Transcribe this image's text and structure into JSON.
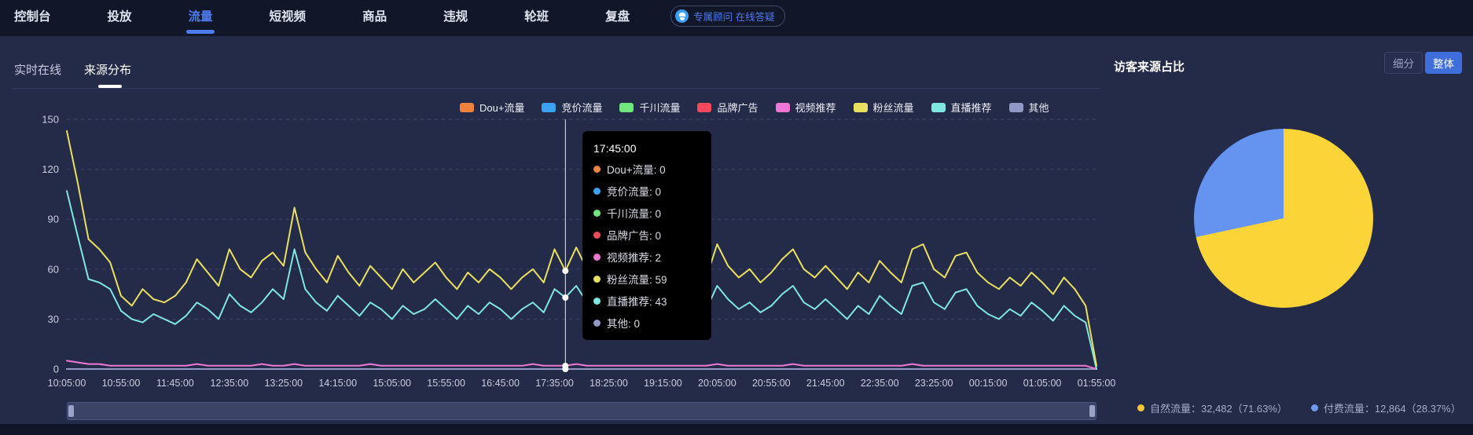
{
  "nav": {
    "items": [
      {
        "label": "控制台",
        "active": false
      },
      {
        "label": "投放",
        "active": false
      },
      {
        "label": "流量",
        "active": true
      },
      {
        "label": "短视频",
        "active": false
      },
      {
        "label": "商品",
        "active": false
      },
      {
        "label": "违规",
        "active": false
      },
      {
        "label": "轮班",
        "active": false
      },
      {
        "label": "复盘",
        "active": false
      }
    ],
    "badge": {
      "icon": "advisor-icon",
      "text": "专属顾问 在线答疑"
    }
  },
  "tabs": [
    {
      "label": "实时在线",
      "active": false
    },
    {
      "label": "来源分布",
      "active": true
    }
  ],
  "right_panel": {
    "title": "访客来源占比",
    "toggle": [
      {
        "label": "细分",
        "active": false
      },
      {
        "label": "整体",
        "active": true
      }
    ],
    "legend": [
      {
        "label": "自然流量",
        "value": "32,482",
        "pct": "71.63%",
        "color": "#F6C838"
      },
      {
        "label": "付费流量",
        "value": "12,864",
        "pct": "28.37%",
        "color": "#6E9BF2"
      }
    ]
  },
  "chart_data": [
    {
      "type": "line",
      "title": "来源分布",
      "xlabel": "",
      "ylabel": "",
      "ylim": [
        0,
        150
      ],
      "y_ticks": [
        0,
        30,
        60,
        90,
        120,
        150
      ],
      "grid": "dashed-horizontal",
      "legend_position": "top",
      "x_interval_minutes": 10,
      "x_ticks": [
        "10:05:00",
        "10:55:00",
        "11:45:00",
        "12:35:00",
        "13:25:00",
        "14:15:00",
        "15:05:00",
        "15:55:00",
        "16:45:00",
        "17:35:00",
        "18:25:00",
        "19:15:00",
        "20:05:00",
        "20:55:00",
        "21:45:00",
        "22:35:00",
        "23:25:00",
        "00:15:00",
        "01:05:00",
        "01:55:00"
      ],
      "series": [
        {
          "name": "Dou+流量",
          "color": "#F0823F",
          "values": [
            0,
            0
          ]
        },
        {
          "name": "竞价流量",
          "color": "#3BA2F2",
          "values": [
            0,
            0
          ]
        },
        {
          "name": "千川流量",
          "color": "#71E57E",
          "values": [
            0,
            0
          ]
        },
        {
          "name": "品牌广告",
          "color": "#F2495A",
          "values": [
            0,
            0
          ]
        },
        {
          "name": "视频推荐",
          "color": "#EE77D4",
          "values": [
            5,
            4,
            3,
            3,
            2,
            2,
            2,
            2,
            2,
            2,
            2,
            2,
            3,
            2,
            2,
            2,
            2,
            2,
            3,
            2,
            2,
            3,
            2,
            2,
            2,
            2,
            2,
            2,
            3,
            2,
            2,
            2,
            2,
            2,
            2,
            2,
            2,
            2,
            2,
            2,
            2,
            2,
            2,
            3,
            2,
            2,
            2,
            3,
            2,
            2,
            2,
            2,
            2,
            2,
            2,
            2,
            2,
            2,
            2,
            2,
            3,
            2,
            2,
            2,
            2,
            2,
            2,
            3,
            2,
            2,
            2,
            2,
            2,
            2,
            2,
            2,
            2,
            2,
            3,
            2,
            2,
            2,
            2,
            2,
            2,
            2,
            2,
            2,
            2,
            2,
            2,
            2,
            2,
            2,
            2,
            0
          ]
        },
        {
          "name": "粉丝流量",
          "color": "#E9E060",
          "values": [
            143,
            112,
            78,
            72,
            64,
            44,
            38,
            48,
            42,
            40,
            44,
            52,
            66,
            58,
            50,
            72,
            60,
            55,
            65,
            70,
            62,
            97,
            70,
            60,
            52,
            68,
            58,
            50,
            62,
            55,
            48,
            60,
            52,
            58,
            64,
            55,
            48,
            58,
            52,
            60,
            55,
            48,
            55,
            60,
            52,
            72,
            59,
            73,
            60,
            55,
            65,
            58,
            52,
            60,
            55,
            48,
            58,
            52,
            62,
            55,
            75,
            62,
            55,
            60,
            52,
            58,
            66,
            72,
            60,
            55,
            62,
            55,
            48,
            58,
            52,
            65,
            58,
            52,
            72,
            75,
            60,
            55,
            68,
            70,
            58,
            52,
            48,
            55,
            50,
            58,
            52,
            45,
            55,
            48,
            38,
            2
          ]
        },
        {
          "name": "直播推荐",
          "color": "#7FE7E0",
          "values": [
            107,
            80,
            54,
            52,
            48,
            35,
            30,
            28,
            33,
            30,
            27,
            32,
            40,
            36,
            30,
            45,
            38,
            34,
            40,
            48,
            42,
            72,
            48,
            40,
            35,
            44,
            38,
            32,
            40,
            36,
            30,
            38,
            33,
            36,
            42,
            36,
            30,
            38,
            33,
            40,
            36,
            30,
            36,
            40,
            34,
            48,
            43,
            50,
            40,
            36,
            44,
            38,
            33,
            40,
            36,
            30,
            38,
            33,
            42,
            36,
            50,
            42,
            36,
            40,
            34,
            38,
            45,
            50,
            40,
            36,
            42,
            36,
            30,
            38,
            33,
            44,
            38,
            33,
            50,
            52,
            40,
            36,
            46,
            48,
            38,
            33,
            30,
            36,
            32,
            40,
            35,
            29,
            38,
            32,
            28,
            0
          ]
        },
        {
          "name": "其他",
          "color": "#9198C5",
          "values": [
            0,
            0
          ]
        }
      ],
      "tooltip": {
        "time": "17:45:00",
        "point_index": 46,
        "rows": [
          {
            "label": "Dou+流量",
            "value": 0,
            "color": "#F0823F"
          },
          {
            "label": "竞价流量",
            "value": 0,
            "color": "#3BA2F2"
          },
          {
            "label": "千川流量",
            "value": 0,
            "color": "#71E57E"
          },
          {
            "label": "品牌广告",
            "value": 0,
            "color": "#F2495A"
          },
          {
            "label": "视频推荐",
            "value": 2,
            "color": "#EE77D4"
          },
          {
            "label": "粉丝流量",
            "value": 59,
            "color": "#E9E060"
          },
          {
            "label": "直播推荐",
            "value": 43,
            "color": "#7FE7E0"
          },
          {
            "label": "其他",
            "value": 0,
            "color": "#9198C5"
          }
        ]
      }
    },
    {
      "type": "pie",
      "title": "访客来源占比",
      "slices": [
        {
          "label": "自然流量",
          "value": 32482,
          "pct": "71.63%",
          "color": "#FBD437"
        },
        {
          "label": "付费流量",
          "value": 12864,
          "pct": "28.37%",
          "color": "#6494F0"
        }
      ],
      "start_angle": "top-clockwise",
      "legend_position": "bottom"
    }
  ]
}
